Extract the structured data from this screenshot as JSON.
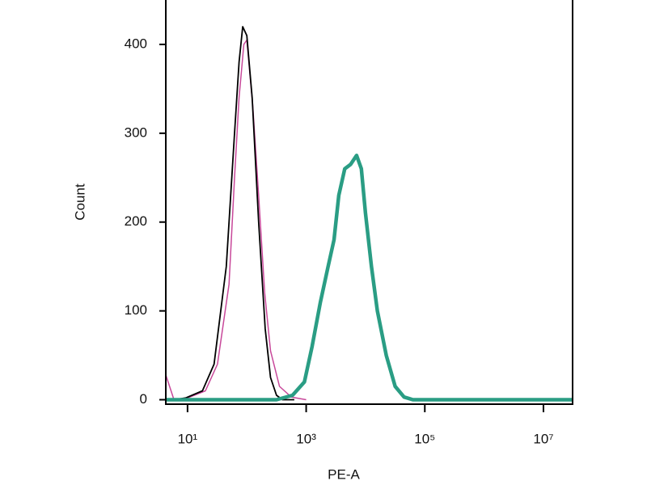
{
  "chart_data": {
    "type": "line",
    "x_label": "PE-A",
    "y_label": "Count",
    "xscale": "log",
    "xlim": [
      4.3,
      31000000
    ],
    "ylim": [
      -5,
      450
    ],
    "xticks": [
      {
        "value": 10,
        "label": "10¹"
      },
      {
        "value": 1000,
        "label": "10³"
      },
      {
        "value": 100000,
        "label": "10⁵"
      },
      {
        "value": 10000000,
        "label": "10⁷"
      }
    ],
    "yticks": [
      0,
      100,
      200,
      300,
      400
    ],
    "series": [
      {
        "color": "#c8489a",
        "width": 1.5,
        "x": [
          4.3,
          5.9,
          10,
          20,
          32,
          50,
          62,
          74,
          89,
          100,
          126,
          158,
          200,
          251,
          355,
          562,
          1000
        ],
        "values": [
          28,
          0,
          2,
          10,
          40,
          130,
          250,
          340,
          400,
          405,
          330,
          230,
          120,
          55,
          15,
          3,
          0
        ]
      },
      {
        "color": "#000000",
        "width": 1.8,
        "x": [
          5.9,
          9.3,
          17.8,
          28,
          45,
          62,
          74,
          85,
          100,
          123,
          158,
          204,
          251,
          316,
          398,
          631
        ],
        "values": [
          0,
          2,
          10,
          40,
          150,
          300,
          380,
          420,
          410,
          340,
          200,
          80,
          25,
          5,
          0,
          0
        ]
      },
      {
        "color": "#2a9d84",
        "width": 4.5,
        "x": [
          4.3,
          316,
          589,
          933,
          1259,
          1738,
          2344,
          2951,
          3548,
          4467,
          5623,
          7079,
          8511,
          10000,
          12589,
          15849,
          22387,
          31623,
          44668,
          63096,
          31000000
        ],
        "values": [
          0,
          0,
          5,
          20,
          60,
          110,
          150,
          180,
          230,
          260,
          265,
          275,
          260,
          210,
          150,
          100,
          50,
          15,
          3,
          0,
          0
        ]
      }
    ]
  }
}
